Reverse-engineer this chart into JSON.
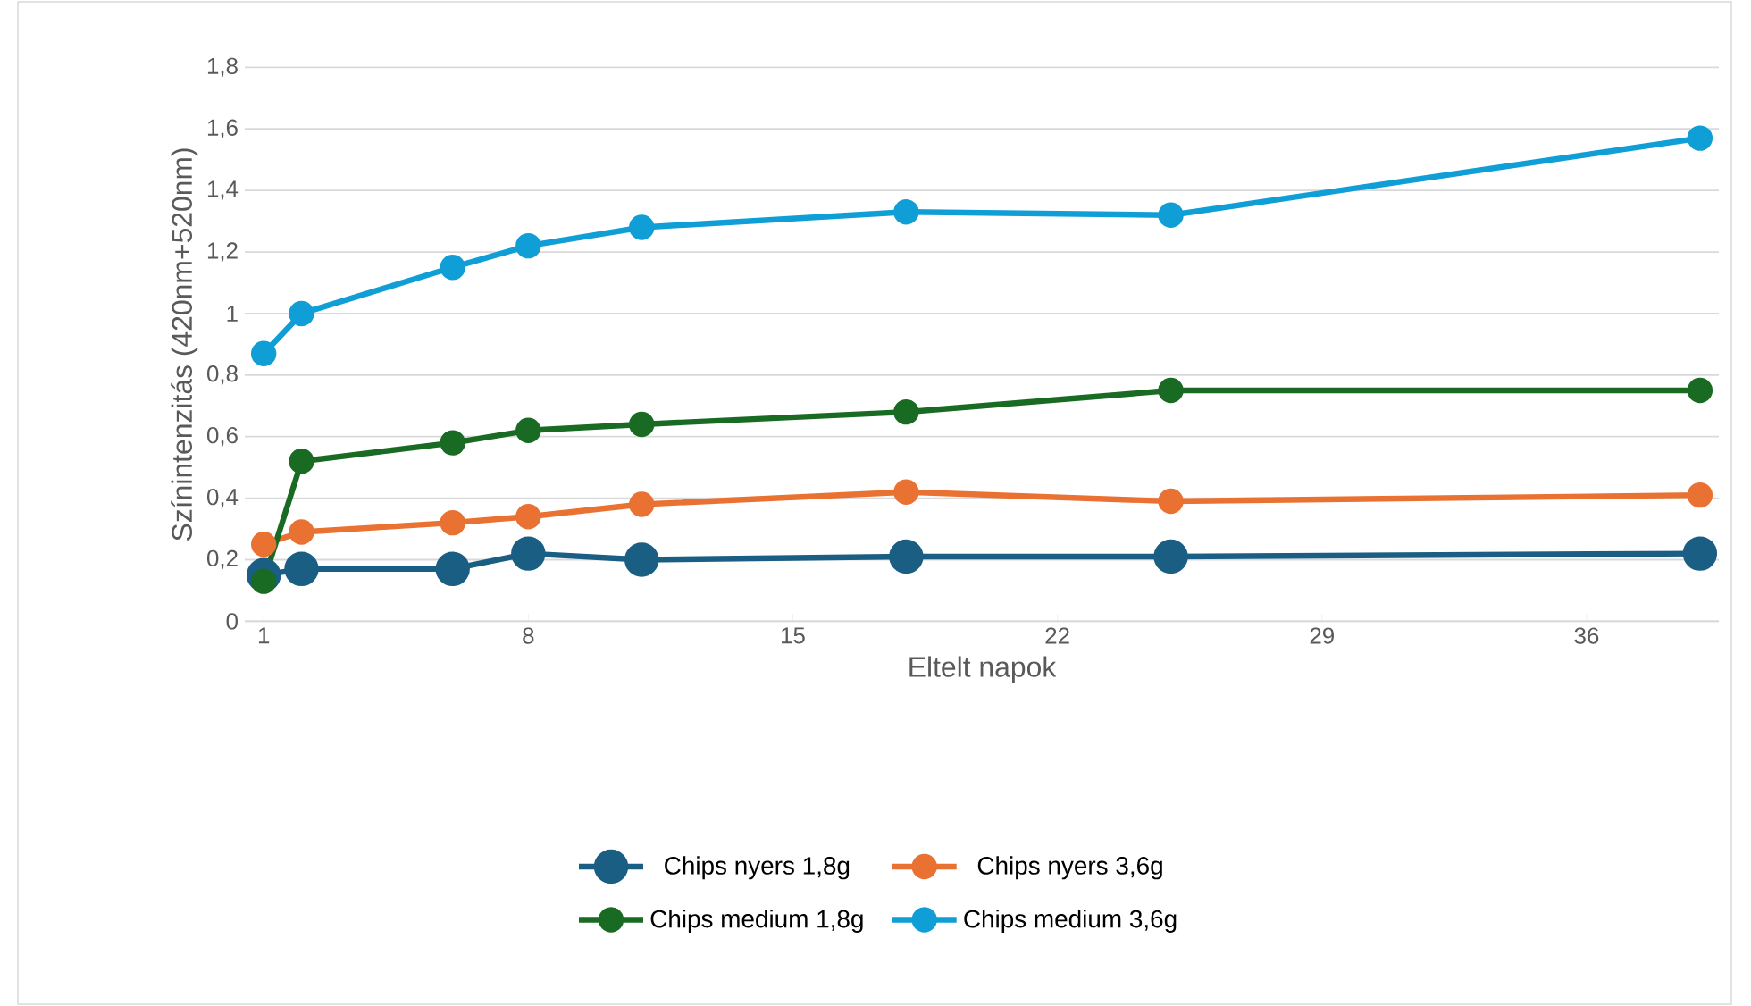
{
  "chart_data": {
    "type": "line",
    "xlabel": "Eltelt napok",
    "ylabel": "Színintenzitás (420nm+520nm)",
    "x": [
      1,
      2,
      6,
      8,
      11,
      18,
      25,
      39
    ],
    "series": [
      {
        "name": "Chips nyers 1,8g",
        "color": "#1a5e83",
        "values": [
          0.15,
          0.17,
          0.17,
          0.22,
          0.2,
          0.21,
          0.21,
          0.22
        ]
      },
      {
        "name": "Chips nyers 3,6g",
        "color": "#e97132",
        "values": [
          0.25,
          0.29,
          0.32,
          0.34,
          0.38,
          0.42,
          0.39,
          0.41
        ]
      },
      {
        "name": "Chips medium 1,8g",
        "color": "#196b24",
        "values": [
          0.13,
          0.52,
          0.58,
          0.62,
          0.64,
          0.68,
          0.75,
          0.75
        ]
      },
      {
        "name": "Chips medium 3,6g",
        "color": "#0f9ed5",
        "values": [
          0.87,
          1.0,
          1.15,
          1.22,
          1.28,
          1.33,
          1.32,
          1.57
        ]
      }
    ],
    "xlim": [
      0.5,
      39.5
    ],
    "xticks": [
      1,
      8,
      15,
      22,
      29,
      36
    ],
    "ylim": [
      0,
      1.8
    ],
    "yticks": [
      0,
      {
        "value": 0.2,
        "label": "0,2"
      },
      {
        "value": 0.4,
        "label": "0,4"
      },
      {
        "value": 0.6,
        "label": "0,6"
      },
      {
        "value": 0.8,
        "label": "0,8"
      },
      1,
      {
        "value": 1.2,
        "label": "1,2"
      },
      {
        "value": 1.4,
        "label": "1,4"
      },
      {
        "value": 1.6,
        "label": "1,6"
      },
      {
        "value": 1.8,
        "label": "1,8"
      }
    ],
    "grid": "y",
    "legend": "bottom",
    "marker": "circle",
    "line_style": "solid"
  }
}
